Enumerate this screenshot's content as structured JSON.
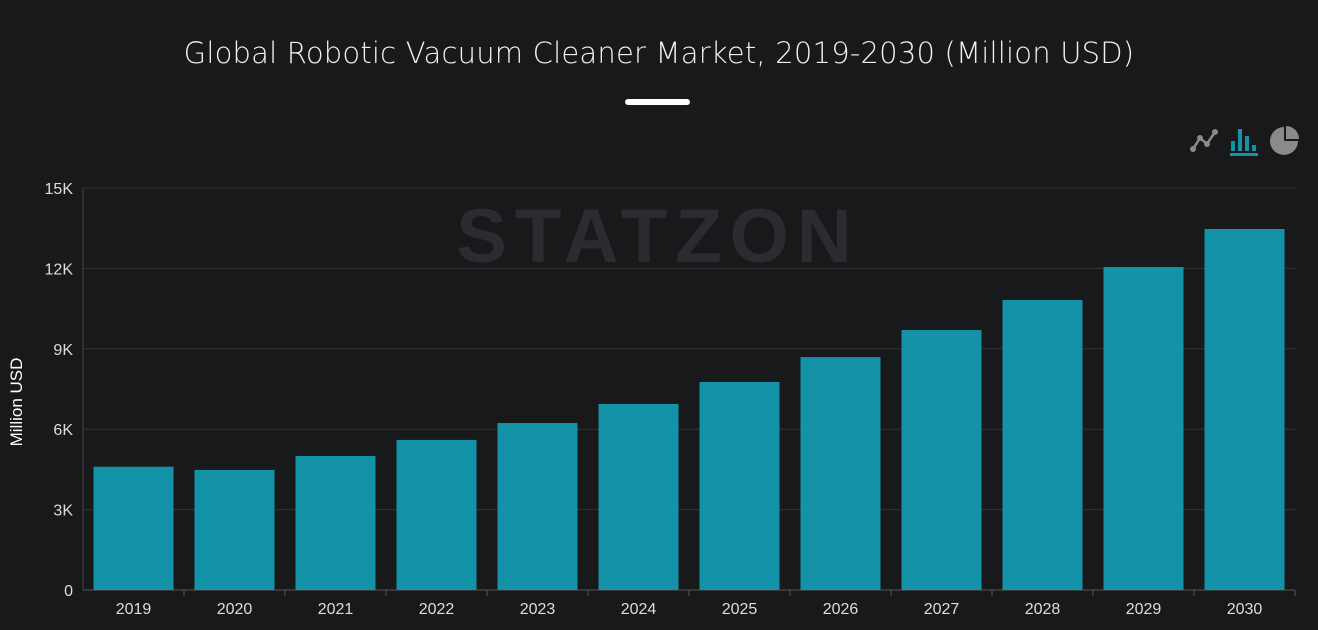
{
  "title": "Global Robotic Vacuum Cleaner Market, 2019-2030 (Million USD)",
  "watermark": "STATZON",
  "toolbar": {
    "icons": [
      "line-chart-icon",
      "bar-chart-icon",
      "pie-chart-icon"
    ],
    "active": "bar-chart-icon"
  },
  "colors": {
    "bar": "#1493a8",
    "background": "#18191b",
    "active_icon": "#1493a8",
    "inactive_icon": "#8a8a8a"
  },
  "chart_data": {
    "type": "bar",
    "title": "Global Robotic Vacuum Cleaner Market, 2019-2030 (Million USD)",
    "xlabel": "",
    "ylabel": "Million USD",
    "ylim": [
      0,
      15000
    ],
    "yticks": [
      0,
      3000,
      6000,
      9000,
      12000,
      15000
    ],
    "ytick_labels": [
      "0",
      "3K",
      "6K",
      "9K",
      "12K",
      "15K"
    ],
    "grid": true,
    "categories": [
      "2019",
      "2020",
      "2021",
      "2022",
      "2023",
      "2024",
      "2025",
      "2026",
      "2027",
      "2028",
      "2029",
      "2030"
    ],
    "values": [
      4600,
      4480,
      5000,
      5600,
      6230,
      6940,
      7760,
      8690,
      9700,
      10820,
      12050,
      13470
    ]
  }
}
